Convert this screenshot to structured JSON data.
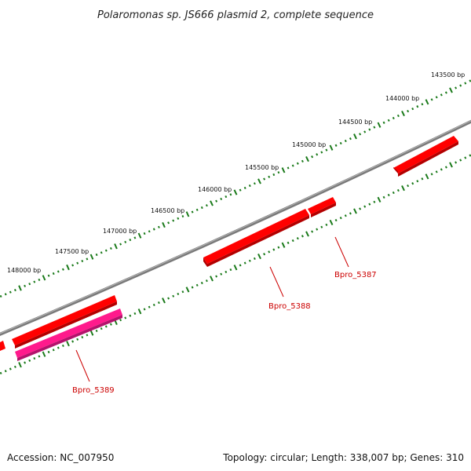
{
  "title": "Polaromonas sp. JS666 plasmid 2, complete sequence",
  "footer": {
    "accession": "Accession: NC_007950",
    "summary": "Topology: circular; Length: 338,007 bp; Genes: 310"
  },
  "colors": {
    "backbone": "#7a7a7a",
    "tick": "#1a7a1a",
    "gene": "#ff0000",
    "gene_dark": "#b30000",
    "gene_alt": "#ff1a8c",
    "gene_alt_dark": "#b3126b",
    "label": "#cc0000"
  },
  "outer_ticks": [
    "143500 bp",
    "144000 bp",
    "144500 bp",
    "145000 bp",
    "145500 bp",
    "146000 bp",
    "146500 bp",
    "147000 bp",
    "147500 bp",
    "148000 bp"
  ],
  "genes": [
    {
      "label": "Bpro_5387"
    },
    {
      "label": "Bpro_5388"
    },
    {
      "label": "Bpro_5389"
    }
  ]
}
